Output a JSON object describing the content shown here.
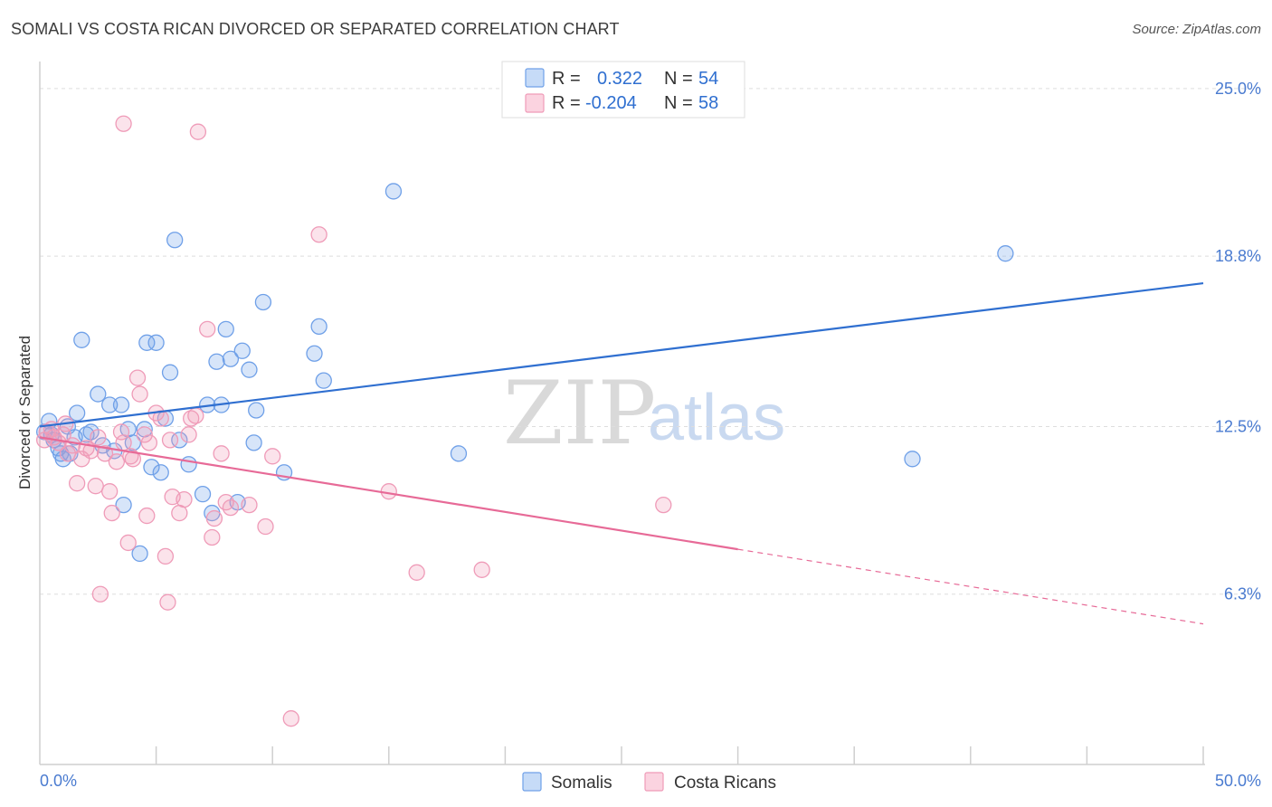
{
  "title": "SOMALI VS COSTA RICAN DIVORCED OR SEPARATED CORRELATION CHART",
  "source": "Source: ZipAtlas.com",
  "watermark": {
    "zip": "ZIP",
    "atlas": "atlas"
  },
  "legend": {
    "rows": [
      {
        "r_label": "R =",
        "r_value": "0.322",
        "n_label": "N =",
        "n_value": "54",
        "color": "#6fa0e8"
      },
      {
        "r_label": "R =",
        "r_value": "-0.204",
        "n_label": "N =",
        "n_value": "58",
        "color": "#ef9bb8"
      }
    ]
  },
  "bottom_legend": {
    "somalis": "Somalis",
    "costa_ricans": "Costa Ricans"
  },
  "chart_data": {
    "type": "scatter",
    "title": "SOMALI VS COSTA RICAN DIVORCED OR SEPARATED CORRELATION CHART",
    "xlabel": "",
    "ylabel": "Divorced or Separated",
    "xlim": [
      0,
      50
    ],
    "ylim": [
      0,
      26
    ],
    "x_tick_labels": [
      "0.0%",
      "50.0%"
    ],
    "y_ticks": [
      6.3,
      12.5,
      18.8,
      25.0
    ],
    "y_tick_labels": [
      "6.3%",
      "12.5%",
      "18.8%",
      "25.0%"
    ],
    "series": [
      {
        "name": "Somalis",
        "color": "#6fa0e8",
        "trend": {
          "x0": 0,
          "y0": 12.5,
          "x1": 50,
          "y1": 17.8,
          "solid_until": 50
        },
        "points": [
          [
            0.2,
            12.3
          ],
          [
            0.4,
            12.7
          ],
          [
            0.5,
            12.2
          ],
          [
            0.6,
            12.0
          ],
          [
            0.8,
            11.7
          ],
          [
            0.9,
            11.5
          ],
          [
            1.0,
            11.3
          ],
          [
            1.2,
            12.5
          ],
          [
            1.3,
            11.5
          ],
          [
            1.5,
            12.1
          ],
          [
            1.6,
            13.0
          ],
          [
            1.8,
            15.7
          ],
          [
            2.0,
            12.2
          ],
          [
            2.2,
            12.3
          ],
          [
            2.5,
            13.7
          ],
          [
            2.7,
            11.8
          ],
          [
            3.0,
            13.3
          ],
          [
            3.2,
            11.6
          ],
          [
            3.5,
            13.3
          ],
          [
            3.6,
            9.6
          ],
          [
            3.8,
            12.4
          ],
          [
            4.0,
            11.9
          ],
          [
            4.3,
            7.8
          ],
          [
            4.5,
            12.4
          ],
          [
            4.6,
            15.6
          ],
          [
            4.8,
            11.0
          ],
          [
            5.0,
            15.6
          ],
          [
            5.2,
            10.8
          ],
          [
            5.4,
            12.8
          ],
          [
            5.6,
            14.5
          ],
          [
            5.8,
            19.4
          ],
          [
            6.0,
            12.0
          ],
          [
            6.4,
            11.1
          ],
          [
            7.0,
            10.0
          ],
          [
            7.2,
            13.3
          ],
          [
            7.4,
            9.3
          ],
          [
            7.6,
            14.9
          ],
          [
            7.8,
            13.3
          ],
          [
            8.0,
            16.1
          ],
          [
            8.2,
            15.0
          ],
          [
            8.5,
            9.7
          ],
          [
            8.7,
            15.3
          ],
          [
            9.0,
            14.6
          ],
          [
            9.2,
            11.9
          ],
          [
            9.3,
            13.1
          ],
          [
            9.6,
            17.1
          ],
          [
            10.5,
            10.8
          ],
          [
            11.8,
            15.2
          ],
          [
            12.0,
            16.2
          ],
          [
            12.2,
            14.2
          ],
          [
            15.2,
            21.2
          ],
          [
            18.0,
            11.5
          ],
          [
            37.5,
            11.3
          ],
          [
            41.5,
            18.9
          ]
        ]
      },
      {
        "name": "Costa Ricans",
        "color": "#ef9bb8",
        "trend": {
          "x0": 0,
          "y0": 12.1,
          "x1": 50,
          "y1": 5.2,
          "solid_until": 30
        },
        "points": [
          [
            0.2,
            12.0
          ],
          [
            0.3,
            12.3
          ],
          [
            0.5,
            12.4
          ],
          [
            0.6,
            12.1
          ],
          [
            0.8,
            11.9
          ],
          [
            1.0,
            12.2
          ],
          [
            1.1,
            12.6
          ],
          [
            1.2,
            11.5
          ],
          [
            1.4,
            11.8
          ],
          [
            1.6,
            10.4
          ],
          [
            1.8,
            11.3
          ],
          [
            2.0,
            11.7
          ],
          [
            2.2,
            11.6
          ],
          [
            2.4,
            10.3
          ],
          [
            2.5,
            12.1
          ],
          [
            2.6,
            6.3
          ],
          [
            2.8,
            11.5
          ],
          [
            3.0,
            10.1
          ],
          [
            3.1,
            9.3
          ],
          [
            3.3,
            11.2
          ],
          [
            3.5,
            12.3
          ],
          [
            3.6,
            11.9
          ],
          [
            3.8,
            8.2
          ],
          [
            3.9,
            11.4
          ],
          [
            4.0,
            11.3
          ],
          [
            4.2,
            14.3
          ],
          [
            4.3,
            13.7
          ],
          [
            4.5,
            12.2
          ],
          [
            4.6,
            9.2
          ],
          [
            4.7,
            11.9
          ],
          [
            5.0,
            13.0
          ],
          [
            5.2,
            12.8
          ],
          [
            5.4,
            7.7
          ],
          [
            5.5,
            6.0
          ],
          [
            5.6,
            12.0
          ],
          [
            5.7,
            9.9
          ],
          [
            6.0,
            9.3
          ],
          [
            6.2,
            9.8
          ],
          [
            6.4,
            12.2
          ],
          [
            6.5,
            12.8
          ],
          [
            6.7,
            12.9
          ],
          [
            7.2,
            16.1
          ],
          [
            7.4,
            8.4
          ],
          [
            7.5,
            9.1
          ],
          [
            7.8,
            11.5
          ],
          [
            8.0,
            9.7
          ],
          [
            8.2,
            9.5
          ],
          [
            9.0,
            9.6
          ],
          [
            9.7,
            8.8
          ],
          [
            10.0,
            11.4
          ],
          [
            10.8,
            1.7
          ],
          [
            12.0,
            19.6
          ],
          [
            15.0,
            10.1
          ],
          [
            16.2,
            7.1
          ],
          [
            19.0,
            7.2
          ],
          [
            26.8,
            9.6
          ],
          [
            3.6,
            23.7
          ],
          [
            6.8,
            23.4
          ]
        ]
      }
    ]
  }
}
